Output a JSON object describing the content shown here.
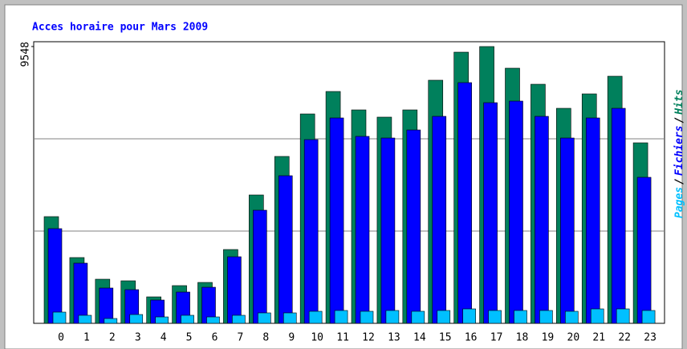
{
  "chart_data": {
    "type": "bar",
    "title": "Acces horaire pour Mars 2009",
    "categories": [
      "0",
      "1",
      "2",
      "3",
      "4",
      "5",
      "6",
      "7",
      "8",
      "9",
      "10",
      "11",
      "12",
      "13",
      "14",
      "15",
      "16",
      "17",
      "18",
      "19",
      "20",
      "21",
      "22",
      "23"
    ],
    "series": [
      {
        "name": "Hits",
        "color": "#00805c",
        "values": [
          3681,
          2269,
          1522,
          1467,
          913,
          1301,
          1411,
          2546,
          4428,
          5757,
          7223,
          7998,
          7362,
          7113,
          7362,
          8386,
          9354,
          9548,
          8801,
          8247,
          7417,
          7915,
          8524,
          6227
        ]
      },
      {
        "name": "Fichiers",
        "color": "#0000ff",
        "values": [
          3266,
          2076,
          1218,
          1162,
          803,
          1079,
          1245,
          2297,
          3902,
          5092,
          6338,
          7085,
          6449,
          6393,
          6670,
          7140,
          8303,
          7611,
          7666,
          7140,
          6393,
          7085,
          7417,
          5037
        ]
      },
      {
        "name": "Pages",
        "color": "#00c0ff",
        "values": [
          387,
          277,
          166,
          304,
          221,
          277,
          221,
          277,
          360,
          360,
          415,
          443,
          415,
          443,
          415,
          443,
          498,
          443,
          443,
          443,
          415,
          498,
          498,
          443
        ]
      }
    ],
    "legend_separator": "/",
    "ylim": [
      0,
      9548
    ],
    "yticks": [
      9548
    ],
    "grid": true
  }
}
